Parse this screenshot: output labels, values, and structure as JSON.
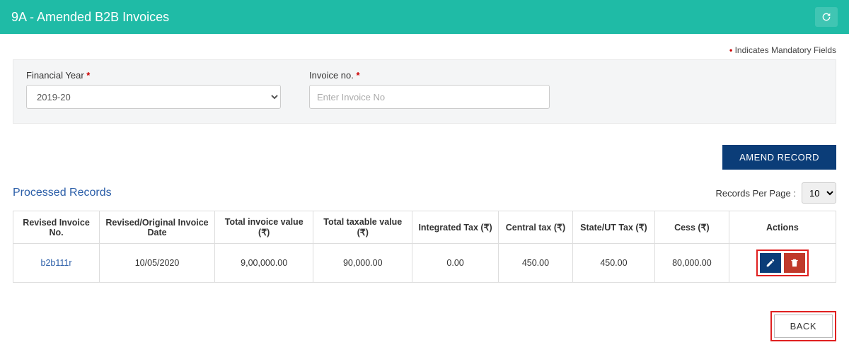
{
  "header": {
    "title": "9A - Amended B2B Invoices"
  },
  "mandatory_note": "Indicates Mandatory Fields",
  "filters": {
    "financial_year": {
      "label": "Financial Year",
      "value": "2019-20"
    },
    "invoice_no": {
      "label": "Invoice no.",
      "placeholder": "Enter Invoice No"
    }
  },
  "buttons": {
    "amend": "AMEND RECORD",
    "back": "BACK"
  },
  "section": {
    "title": "Processed Records",
    "records_per_page_label": "Records Per Page :",
    "records_per_page_value": "10"
  },
  "table": {
    "columns": [
      "Revised Invoice No.",
      "Revised/Original Invoice Date",
      "Total invoice value (₹)",
      "Total taxable value (₹)",
      "Integrated Tax (₹)",
      "Central tax (₹)",
      "State/UT Tax (₹)",
      "Cess (₹)",
      "Actions"
    ],
    "col_widths_pct": [
      10.5,
      14,
      12,
      12,
      10.5,
      9,
      10,
      9,
      13
    ],
    "rows": [
      {
        "invoice_no": "b2b111r",
        "date": "10/05/2020",
        "total_value": "9,00,000.00",
        "taxable_value": "90,000.00",
        "igst": "0.00",
        "cgst": "450.00",
        "sgst": "450.00",
        "cess": "80,000.00"
      }
    ]
  },
  "colors": {
    "header_bg": "#1fbba6",
    "primary_btn": "#0b3d78",
    "danger_btn": "#c0392b",
    "highlight_border": "#e02020",
    "link": "#2b5ea8"
  }
}
